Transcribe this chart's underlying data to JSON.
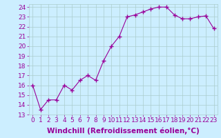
{
  "x": [
    0,
    1,
    2,
    3,
    4,
    5,
    6,
    7,
    8,
    9,
    10,
    11,
    12,
    13,
    14,
    15,
    16,
    17,
    18,
    19,
    20,
    21,
    22,
    23
  ],
  "y": [
    16.0,
    13.5,
    14.5,
    14.5,
    16.0,
    15.5,
    16.5,
    17.0,
    16.5,
    18.5,
    20.0,
    21.0,
    23.0,
    23.2,
    23.5,
    23.8,
    24.0,
    24.0,
    23.2,
    22.8,
    22.8,
    23.0,
    23.1,
    21.8
  ],
  "xlabel": "Windchill (Refroidissement éolien,°C)",
  "ylim": [
    13,
    24
  ],
  "xlim": [
    -0.5,
    23.5
  ],
  "yticks": [
    13,
    14,
    15,
    16,
    17,
    18,
    19,
    20,
    21,
    22,
    23,
    24
  ],
  "xticks": [
    0,
    1,
    2,
    3,
    4,
    5,
    6,
    7,
    8,
    9,
    10,
    11,
    12,
    13,
    14,
    15,
    16,
    17,
    18,
    19,
    20,
    21,
    22,
    23
  ],
  "xtick_labels": [
    "0",
    "1",
    "2",
    "3",
    "4",
    "5",
    "6",
    "7",
    "8",
    "9",
    "10",
    "11",
    "12",
    "13",
    "14",
    "15",
    "16",
    "17",
    "18",
    "19",
    "20",
    "21",
    "22",
    "23"
  ],
  "line_color": "#990099",
  "marker": "+",
  "marker_size": 4,
  "background_color": "#cceeff",
  "grid_color": "#aacccc",
  "tick_color": "#990099",
  "label_color": "#990099",
  "font_size": 6.5,
  "xlabel_fontsize": 7.5
}
